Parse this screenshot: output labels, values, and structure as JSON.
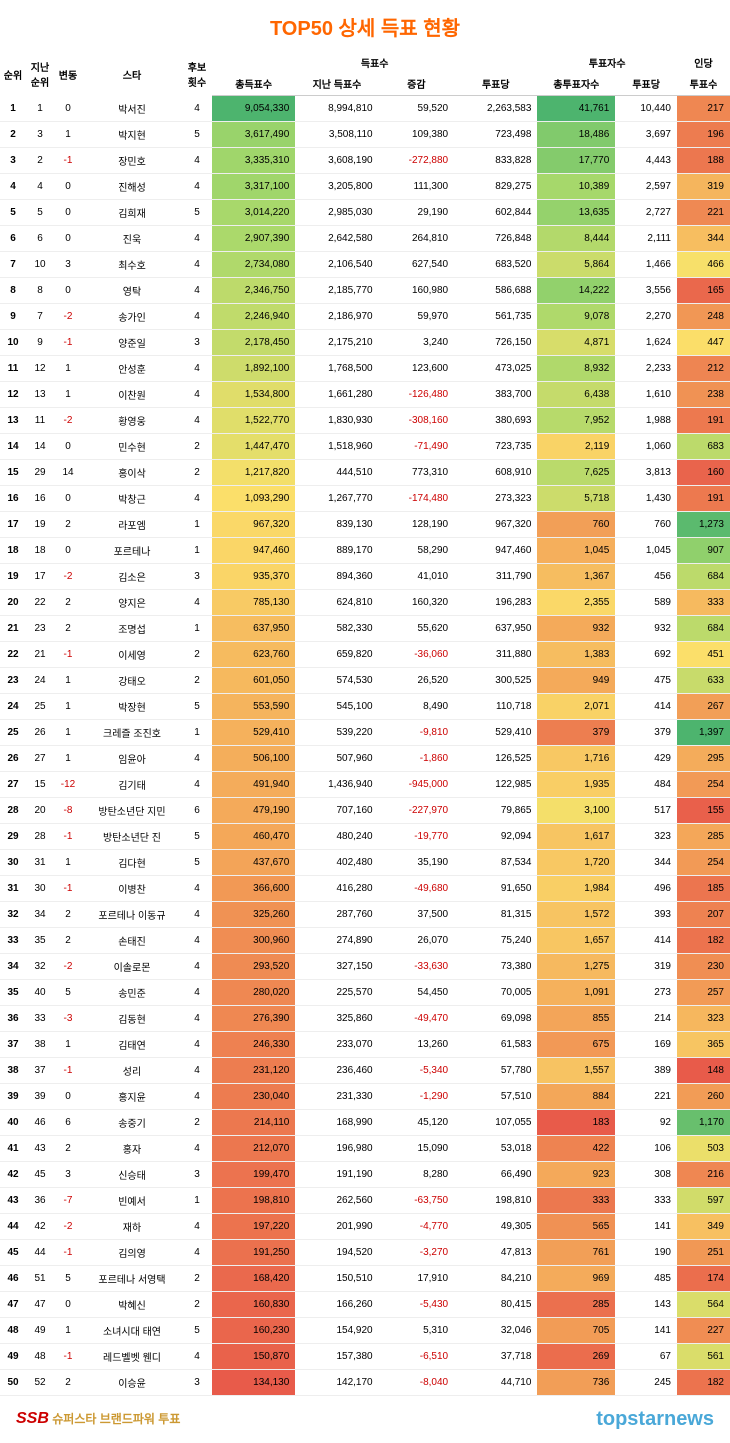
{
  "title": "TOP50 상세 득표 현황",
  "headers": {
    "rank": "순위",
    "prev_rank": "지난\n순위",
    "change": "변동",
    "star": "스타",
    "cand_count": "후보\n횟수",
    "votes_group": "득표수",
    "total_votes": "총득표수",
    "prev_votes": "지난 득표수",
    "diff": "증감",
    "per_voting": "투표당",
    "voters_group": "투표자수",
    "total_voters": "총투표자수",
    "voters_per": "투표당",
    "per_person_group": "인당",
    "per_person": "투표수"
  },
  "footer": {
    "left_icon": "SSB",
    "left_text": "슈퍼스타 브랜드파워 투표",
    "right": "topstarnews"
  },
  "heat": {
    "total_votes": {
      "min": 134130,
      "max": 9054330,
      "colors": [
        "#f26d50",
        "#f5a35a",
        "#fde068",
        "#a8d96a",
        "#5cb86c"
      ],
      "dir": "high_green"
    },
    "total_voters": {
      "min": 183,
      "max": 41761,
      "colors": [
        "#e85b4a",
        "#f29c56",
        "#fbe06a",
        "#a4d86b",
        "#4db46e"
      ],
      "dir": "high_green"
    },
    "per_person": {
      "min": 148,
      "max": 1397,
      "colors": [
        "#e85b4a",
        "#f29c56",
        "#fbe06a",
        "#a4d86b",
        "#4db46e"
      ],
      "dir": "high_green"
    }
  },
  "rows": [
    {
      "rank": 1,
      "prev": 1,
      "chg": 0,
      "star": "박서진",
      "cand": 4,
      "tv": "9,054,330",
      "pv": "8,994,810",
      "diff": "59,520",
      "pvt": "2,263,583",
      "tvr": "41,761",
      "vpp": "10,440",
      "pp": "217",
      "tv_n": 9054330,
      "tvr_n": 41761,
      "pp_n": 217
    },
    {
      "rank": 2,
      "prev": 3,
      "chg": 1,
      "star": "박지현",
      "cand": 5,
      "tv": "3,617,490",
      "pv": "3,508,110",
      "diff": "109,380",
      "pvt": "723,498",
      "tvr": "18,486",
      "vpp": "3,697",
      "pp": "196",
      "tv_n": 3617490,
      "tvr_n": 18486,
      "pp_n": 196
    },
    {
      "rank": 3,
      "prev": 2,
      "chg": -1,
      "star": "장민호",
      "cand": 4,
      "tv": "3,335,310",
      "pv": "3,608,190",
      "diff": "-272,880",
      "pvt": "833,828",
      "tvr": "17,770",
      "vpp": "4,443",
      "pp": "188",
      "tv_n": 3335310,
      "tvr_n": 17770,
      "pp_n": 188
    },
    {
      "rank": 4,
      "prev": 4,
      "chg": 0,
      "star": "진해성",
      "cand": 4,
      "tv": "3,317,100",
      "pv": "3,205,800",
      "diff": "111,300",
      "pvt": "829,275",
      "tvr": "10,389",
      "vpp": "2,597",
      "pp": "319",
      "tv_n": 3317100,
      "tvr_n": 10389,
      "pp_n": 319
    },
    {
      "rank": 5,
      "prev": 5,
      "chg": 0,
      "star": "김희재",
      "cand": 5,
      "tv": "3,014,220",
      "pv": "2,985,030",
      "diff": "29,190",
      "pvt": "602,844",
      "tvr": "13,635",
      "vpp": "2,727",
      "pp": "221",
      "tv_n": 3014220,
      "tvr_n": 13635,
      "pp_n": 221
    },
    {
      "rank": 6,
      "prev": 6,
      "chg": 0,
      "star": "진욱",
      "cand": 4,
      "tv": "2,907,390",
      "pv": "2,642,580",
      "diff": "264,810",
      "pvt": "726,848",
      "tvr": "8,444",
      "vpp": "2,111",
      "pp": "344",
      "tv_n": 2907390,
      "tvr_n": 8444,
      "pp_n": 344
    },
    {
      "rank": 7,
      "prev": 10,
      "chg": 3,
      "star": "최수호",
      "cand": 4,
      "tv": "2,734,080",
      "pv": "2,106,540",
      "diff": "627,540",
      "pvt": "683,520",
      "tvr": "5,864",
      "vpp": "1,466",
      "pp": "466",
      "tv_n": 2734080,
      "tvr_n": 5864,
      "pp_n": 466
    },
    {
      "rank": 8,
      "prev": 8,
      "chg": 0,
      "star": "영탁",
      "cand": 4,
      "tv": "2,346,750",
      "pv": "2,185,770",
      "diff": "160,980",
      "pvt": "586,688",
      "tvr": "14,222",
      "vpp": "3,556",
      "pp": "165",
      "tv_n": 2346750,
      "tvr_n": 14222,
      "pp_n": 165
    },
    {
      "rank": 9,
      "prev": 7,
      "chg": -2,
      "star": "송가인",
      "cand": 4,
      "tv": "2,246,940",
      "pv": "2,186,970",
      "diff": "59,970",
      "pvt": "561,735",
      "tvr": "9,078",
      "vpp": "2,270",
      "pp": "248",
      "tv_n": 2246940,
      "tvr_n": 9078,
      "pp_n": 248
    },
    {
      "rank": 10,
      "prev": 9,
      "chg": -1,
      "star": "양준일",
      "cand": 3,
      "tv": "2,178,450",
      "pv": "2,175,210",
      "diff": "3,240",
      "pvt": "726,150",
      "tvr": "4,871",
      "vpp": "1,624",
      "pp": "447",
      "tv_n": 2178450,
      "tvr_n": 4871,
      "pp_n": 447
    },
    {
      "rank": 11,
      "prev": 12,
      "chg": 1,
      "star": "안성훈",
      "cand": 4,
      "tv": "1,892,100",
      "pv": "1,768,500",
      "diff": "123,600",
      "pvt": "473,025",
      "tvr": "8,932",
      "vpp": "2,233",
      "pp": "212",
      "tv_n": 1892100,
      "tvr_n": 8932,
      "pp_n": 212
    },
    {
      "rank": 12,
      "prev": 13,
      "chg": 1,
      "star": "이찬원",
      "cand": 4,
      "tv": "1,534,800",
      "pv": "1,661,280",
      "diff": "-126,480",
      "pvt": "383,700",
      "tvr": "6,438",
      "vpp": "1,610",
      "pp": "238",
      "tv_n": 1534800,
      "tvr_n": 6438,
      "pp_n": 238
    },
    {
      "rank": 13,
      "prev": 11,
      "chg": -2,
      "star": "황영웅",
      "cand": 4,
      "tv": "1,522,770",
      "pv": "1,830,930",
      "diff": "-308,160",
      "pvt": "380,693",
      "tvr": "7,952",
      "vpp": "1,988",
      "pp": "191",
      "tv_n": 1522770,
      "tvr_n": 7952,
      "pp_n": 191
    },
    {
      "rank": 14,
      "prev": 14,
      "chg": 0,
      "star": "민수현",
      "cand": 2,
      "tv": "1,447,470",
      "pv": "1,518,960",
      "diff": "-71,490",
      "pvt": "723,735",
      "tvr": "2,119",
      "vpp": "1,060",
      "pp": "683",
      "tv_n": 1447470,
      "tvr_n": 2119,
      "pp_n": 683
    },
    {
      "rank": 15,
      "prev": 29,
      "chg": 14,
      "star": "홍이삭",
      "cand": 2,
      "tv": "1,217,820",
      "pv": "444,510",
      "diff": "773,310",
      "pvt": "608,910",
      "tvr": "7,625",
      "vpp": "3,813",
      "pp": "160",
      "tv_n": 1217820,
      "tvr_n": 7625,
      "pp_n": 160
    },
    {
      "rank": 16,
      "prev": 16,
      "chg": 0,
      "star": "박창근",
      "cand": 4,
      "tv": "1,093,290",
      "pv": "1,267,770",
      "diff": "-174,480",
      "pvt": "273,323",
      "tvr": "5,718",
      "vpp": "1,430",
      "pp": "191",
      "tv_n": 1093290,
      "tvr_n": 5718,
      "pp_n": 191
    },
    {
      "rank": 17,
      "prev": 19,
      "chg": 2,
      "star": "라포엠",
      "cand": 1,
      "tv": "967,320",
      "pv": "839,130",
      "diff": "128,190",
      "pvt": "967,320",
      "tvr": "760",
      "vpp": "760",
      "pp": "1,273",
      "tv_n": 967320,
      "tvr_n": 760,
      "pp_n": 1273
    },
    {
      "rank": 18,
      "prev": 18,
      "chg": 0,
      "star": "포르테나",
      "cand": 1,
      "tv": "947,460",
      "pv": "889,170",
      "diff": "58,290",
      "pvt": "947,460",
      "tvr": "1,045",
      "vpp": "1,045",
      "pp": "907",
      "tv_n": 947460,
      "tvr_n": 1045,
      "pp_n": 907
    },
    {
      "rank": 19,
      "prev": 17,
      "chg": -2,
      "star": "김소은",
      "cand": 3,
      "tv": "935,370",
      "pv": "894,360",
      "diff": "41,010",
      "pvt": "311,790",
      "tvr": "1,367",
      "vpp": "456",
      "pp": "684",
      "tv_n": 935370,
      "tvr_n": 1367,
      "pp_n": 684
    },
    {
      "rank": 20,
      "prev": 22,
      "chg": 2,
      "star": "양지은",
      "cand": 4,
      "tv": "785,130",
      "pv": "624,810",
      "diff": "160,320",
      "pvt": "196,283",
      "tvr": "2,355",
      "vpp": "589",
      "pp": "333",
      "tv_n": 785130,
      "tvr_n": 2355,
      "pp_n": 333
    },
    {
      "rank": 21,
      "prev": 23,
      "chg": 2,
      "star": "조명섭",
      "cand": 1,
      "tv": "637,950",
      "pv": "582,330",
      "diff": "55,620",
      "pvt": "637,950",
      "tvr": "932",
      "vpp": "932",
      "pp": "684",
      "tv_n": 637950,
      "tvr_n": 932,
      "pp_n": 684
    },
    {
      "rank": 22,
      "prev": 21,
      "chg": -1,
      "star": "이세영",
      "cand": 2,
      "tv": "623,760",
      "pv": "659,820",
      "diff": "-36,060",
      "pvt": "311,880",
      "tvr": "1,383",
      "vpp": "692",
      "pp": "451",
      "tv_n": 623760,
      "tvr_n": 1383,
      "pp_n": 451
    },
    {
      "rank": 23,
      "prev": 24,
      "chg": 1,
      "star": "강태오",
      "cand": 2,
      "tv": "601,050",
      "pv": "574,530",
      "diff": "26,520",
      "pvt": "300,525",
      "tvr": "949",
      "vpp": "475",
      "pp": "633",
      "tv_n": 601050,
      "tvr_n": 949,
      "pp_n": 633
    },
    {
      "rank": 24,
      "prev": 25,
      "chg": 1,
      "star": "박장현",
      "cand": 5,
      "tv": "553,590",
      "pv": "545,100",
      "diff": "8,490",
      "pvt": "110,718",
      "tvr": "2,071",
      "vpp": "414",
      "pp": "267",
      "tv_n": 553590,
      "tvr_n": 2071,
      "pp_n": 267
    },
    {
      "rank": 25,
      "prev": 26,
      "chg": 1,
      "star": "크레즐 조진호",
      "cand": 1,
      "tv": "529,410",
      "pv": "539,220",
      "diff": "-9,810",
      "pvt": "529,410",
      "tvr": "379",
      "vpp": "379",
      "pp": "1,397",
      "tv_n": 529410,
      "tvr_n": 379,
      "pp_n": 1397
    },
    {
      "rank": 26,
      "prev": 27,
      "chg": 1,
      "star": "임윤아",
      "cand": 4,
      "tv": "506,100",
      "pv": "507,960",
      "diff": "-1,860",
      "pvt": "126,525",
      "tvr": "1,716",
      "vpp": "429",
      "pp": "295",
      "tv_n": 506100,
      "tvr_n": 1716,
      "pp_n": 295
    },
    {
      "rank": 27,
      "prev": 15,
      "chg": -12,
      "star": "김기태",
      "cand": 4,
      "tv": "491,940",
      "pv": "1,436,940",
      "diff": "-945,000",
      "pvt": "122,985",
      "tvr": "1,935",
      "vpp": "484",
      "pp": "254",
      "tv_n": 491940,
      "tvr_n": 1935,
      "pp_n": 254
    },
    {
      "rank": 28,
      "prev": 20,
      "chg": -8,
      "star": "방탄소년단 지민",
      "cand": 6,
      "tv": "479,190",
      "pv": "707,160",
      "diff": "-227,970",
      "pvt": "79,865",
      "tvr": "3,100",
      "vpp": "517",
      "pp": "155",
      "tv_n": 479190,
      "tvr_n": 3100,
      "pp_n": 155
    },
    {
      "rank": 29,
      "prev": 28,
      "chg": -1,
      "star": "방탄소년단 진",
      "cand": 5,
      "tv": "460,470",
      "pv": "480,240",
      "diff": "-19,770",
      "pvt": "92,094",
      "tvr": "1,617",
      "vpp": "323",
      "pp": "285",
      "tv_n": 460470,
      "tvr_n": 1617,
      "pp_n": 285
    },
    {
      "rank": 30,
      "prev": 31,
      "chg": 1,
      "star": "김다현",
      "cand": 5,
      "tv": "437,670",
      "pv": "402,480",
      "diff": "35,190",
      "pvt": "87,534",
      "tvr": "1,720",
      "vpp": "344",
      "pp": "254",
      "tv_n": 437670,
      "tvr_n": 1720,
      "pp_n": 254
    },
    {
      "rank": 31,
      "prev": 30,
      "chg": -1,
      "star": "이병찬",
      "cand": 4,
      "tv": "366,600",
      "pv": "416,280",
      "diff": "-49,680",
      "pvt": "91,650",
      "tvr": "1,984",
      "vpp": "496",
      "pp": "185",
      "tv_n": 366600,
      "tvr_n": 1984,
      "pp_n": 185
    },
    {
      "rank": 32,
      "prev": 34,
      "chg": 2,
      "star": "포르테나 이동규",
      "cand": 4,
      "tv": "325,260",
      "pv": "287,760",
      "diff": "37,500",
      "pvt": "81,315",
      "tvr": "1,572",
      "vpp": "393",
      "pp": "207",
      "tv_n": 325260,
      "tvr_n": 1572,
      "pp_n": 207
    },
    {
      "rank": 33,
      "prev": 35,
      "chg": 2,
      "star": "손태진",
      "cand": 4,
      "tv": "300,960",
      "pv": "274,890",
      "diff": "26,070",
      "pvt": "75,240",
      "tvr": "1,657",
      "vpp": "414",
      "pp": "182",
      "tv_n": 300960,
      "tvr_n": 1657,
      "pp_n": 182
    },
    {
      "rank": 34,
      "prev": 32,
      "chg": -2,
      "star": "이솔로몬",
      "cand": 4,
      "tv": "293,520",
      "pv": "327,150",
      "diff": "-33,630",
      "pvt": "73,380",
      "tvr": "1,275",
      "vpp": "319",
      "pp": "230",
      "tv_n": 293520,
      "tvr_n": 1275,
      "pp_n": 230
    },
    {
      "rank": 35,
      "prev": 40,
      "chg": 5,
      "star": "송민준",
      "cand": 4,
      "tv": "280,020",
      "pv": "225,570",
      "diff": "54,450",
      "pvt": "70,005",
      "tvr": "1,091",
      "vpp": "273",
      "pp": "257",
      "tv_n": 280020,
      "tvr_n": 1091,
      "pp_n": 257
    },
    {
      "rank": 36,
      "prev": 33,
      "chg": -3,
      "star": "김동현",
      "cand": 4,
      "tv": "276,390",
      "pv": "325,860",
      "diff": "-49,470",
      "pvt": "69,098",
      "tvr": "855",
      "vpp": "214",
      "pp": "323",
      "tv_n": 276390,
      "tvr_n": 855,
      "pp_n": 323
    },
    {
      "rank": 37,
      "prev": 38,
      "chg": 1,
      "star": "김태연",
      "cand": 4,
      "tv": "246,330",
      "pv": "233,070",
      "diff": "13,260",
      "pvt": "61,583",
      "tvr": "675",
      "vpp": "169",
      "pp": "365",
      "tv_n": 246330,
      "tvr_n": 675,
      "pp_n": 365
    },
    {
      "rank": 38,
      "prev": 37,
      "chg": -1,
      "star": "성리",
      "cand": 4,
      "tv": "231,120",
      "pv": "236,460",
      "diff": "-5,340",
      "pvt": "57,780",
      "tvr": "1,557",
      "vpp": "389",
      "pp": "148",
      "tv_n": 231120,
      "tvr_n": 1557,
      "pp_n": 148
    },
    {
      "rank": 39,
      "prev": 39,
      "chg": 0,
      "star": "홍지윤",
      "cand": 4,
      "tv": "230,040",
      "pv": "231,330",
      "diff": "-1,290",
      "pvt": "57,510",
      "tvr": "884",
      "vpp": "221",
      "pp": "260",
      "tv_n": 230040,
      "tvr_n": 884,
      "pp_n": 260
    },
    {
      "rank": 40,
      "prev": 46,
      "chg": 6,
      "star": "송중기",
      "cand": 2,
      "tv": "214,110",
      "pv": "168,990",
      "diff": "45,120",
      "pvt": "107,055",
      "tvr": "183",
      "vpp": "92",
      "pp": "1,170",
      "tv_n": 214110,
      "tvr_n": 183,
      "pp_n": 1170
    },
    {
      "rank": 41,
      "prev": 43,
      "chg": 2,
      "star": "홍자",
      "cand": 4,
      "tv": "212,070",
      "pv": "196,980",
      "diff": "15,090",
      "pvt": "53,018",
      "tvr": "422",
      "vpp": "106",
      "pp": "503",
      "tv_n": 212070,
      "tvr_n": 422,
      "pp_n": 503
    },
    {
      "rank": 42,
      "prev": 45,
      "chg": 3,
      "star": "신승태",
      "cand": 3,
      "tv": "199,470",
      "pv": "191,190",
      "diff": "8,280",
      "pvt": "66,490",
      "tvr": "923",
      "vpp": "308",
      "pp": "216",
      "tv_n": 199470,
      "tvr_n": 923,
      "pp_n": 216
    },
    {
      "rank": 43,
      "prev": 36,
      "chg": -7,
      "star": "빈예서",
      "cand": 1,
      "tv": "198,810",
      "pv": "262,560",
      "diff": "-63,750",
      "pvt": "198,810",
      "tvr": "333",
      "vpp": "333",
      "pp": "597",
      "tv_n": 198810,
      "tvr_n": 333,
      "pp_n": 597
    },
    {
      "rank": 44,
      "prev": 42,
      "chg": -2,
      "star": "재하",
      "cand": 4,
      "tv": "197,220",
      "pv": "201,990",
      "diff": "-4,770",
      "pvt": "49,305",
      "tvr": "565",
      "vpp": "141",
      "pp": "349",
      "tv_n": 197220,
      "tvr_n": 565,
      "pp_n": 349
    },
    {
      "rank": 45,
      "prev": 44,
      "chg": -1,
      "star": "김의영",
      "cand": 4,
      "tv": "191,250",
      "pv": "194,520",
      "diff": "-3,270",
      "pvt": "47,813",
      "tvr": "761",
      "vpp": "190",
      "pp": "251",
      "tv_n": 191250,
      "tvr_n": 761,
      "pp_n": 251
    },
    {
      "rank": 46,
      "prev": 51,
      "chg": 5,
      "star": "포르테나 서영택",
      "cand": 2,
      "tv": "168,420",
      "pv": "150,510",
      "diff": "17,910",
      "pvt": "84,210",
      "tvr": "969",
      "vpp": "485",
      "pp": "174",
      "tv_n": 168420,
      "tvr_n": 969,
      "pp_n": 174
    },
    {
      "rank": 47,
      "prev": 47,
      "chg": 0,
      "star": "박혜신",
      "cand": 2,
      "tv": "160,830",
      "pv": "166,260",
      "diff": "-5,430",
      "pvt": "80,415",
      "tvr": "285",
      "vpp": "143",
      "pp": "564",
      "tv_n": 160830,
      "tvr_n": 285,
      "pp_n": 564
    },
    {
      "rank": 48,
      "prev": 49,
      "chg": 1,
      "star": "소녀시대 태연",
      "cand": 5,
      "tv": "160,230",
      "pv": "154,920",
      "diff": "5,310",
      "pvt": "32,046",
      "tvr": "705",
      "vpp": "141",
      "pp": "227",
      "tv_n": 160230,
      "tvr_n": 705,
      "pp_n": 227
    },
    {
      "rank": 49,
      "prev": 48,
      "chg": -1,
      "star": "레드벨벳 웬디",
      "cand": 4,
      "tv": "150,870",
      "pv": "157,380",
      "diff": "-6,510",
      "pvt": "37,718",
      "tvr": "269",
      "vpp": "67",
      "pp": "561",
      "tv_n": 150870,
      "tvr_n": 269,
      "pp_n": 561
    },
    {
      "rank": 50,
      "prev": 52,
      "chg": 2,
      "star": "이승윤",
      "cand": 3,
      "tv": "134,130",
      "pv": "142,170",
      "diff": "-8,040",
      "pvt": "44,710",
      "tvr": "736",
      "vpp": "245",
      "pp": "182",
      "tv_n": 134130,
      "tvr_n": 736,
      "pp_n": 182
    }
  ]
}
